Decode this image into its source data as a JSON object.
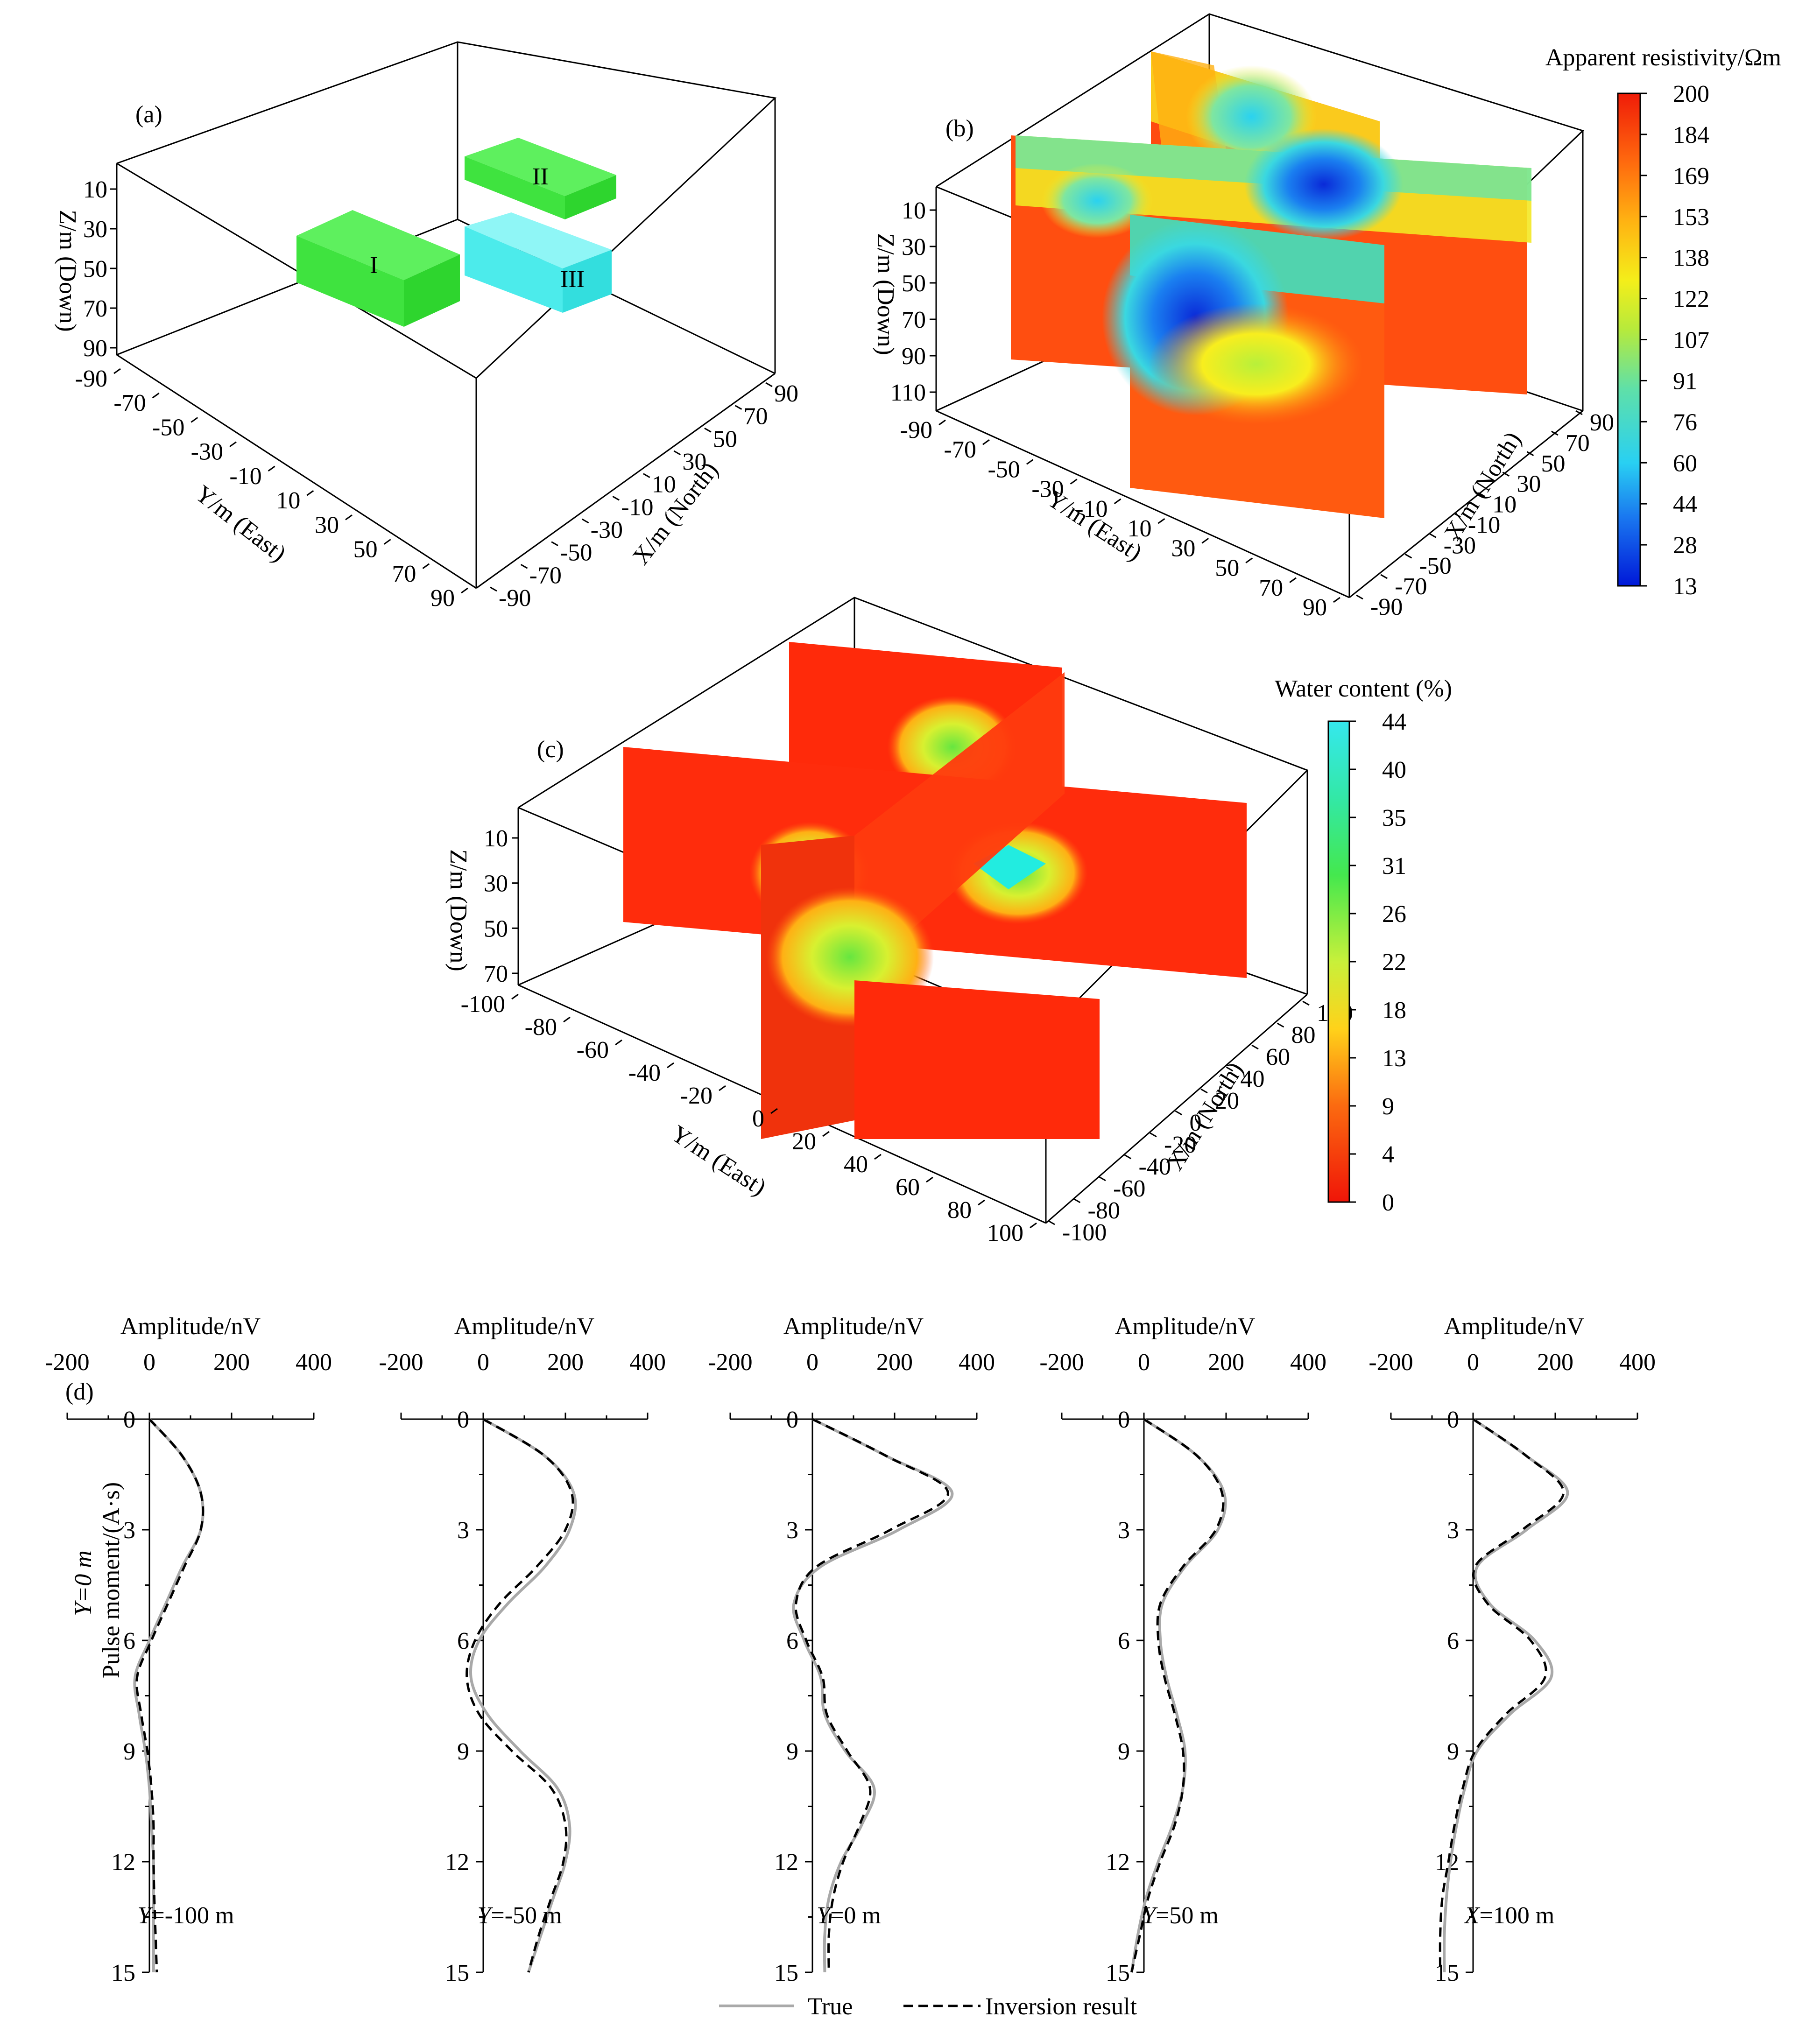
{
  "chart_data": [
    {
      "panel": "(a)",
      "type": "3d-model",
      "zlabel": "Z/m (Down)",
      "ylabel": "Y/m (East)",
      "xlabel": "X/m (North)",
      "z_ticks": [
        "10",
        "30",
        "50",
        "70",
        "90"
      ],
      "y_ticks": [
        "-90",
        "-70",
        "-50",
        "-30",
        "-10",
        "10",
        "30",
        "50",
        "70",
        "90"
      ],
      "x_ticks": [
        "-90",
        "-70",
        "-50",
        "-30",
        "-10",
        "10",
        "30",
        "50",
        "70",
        "90"
      ],
      "bodies": [
        {
          "label": "I",
          "color": "#33e633"
        },
        {
          "label": "II",
          "color": "#33e633"
        },
        {
          "label": "III",
          "color": "#33e6e6"
        }
      ]
    },
    {
      "panel": "(b)",
      "type": "3d-slices",
      "zlabel": "Z/m (Down)",
      "ylabel": "Y/m (East)",
      "xlabel": "X/m (North)",
      "z_ticks": [
        "10",
        "30",
        "50",
        "70",
        "90",
        "110"
      ],
      "y_ticks": [
        "-90",
        "-70",
        "-50",
        "-30",
        "-10",
        "10",
        "30",
        "50",
        "70",
        "90"
      ],
      "x_ticks": [
        "90",
        "70",
        "50",
        "30",
        "10",
        "-10",
        "-30",
        "-50",
        "-70",
        "-90"
      ],
      "colorbar": {
        "title": "Apparent resistivity/Ωm",
        "ticks": [
          "200",
          "184",
          "169",
          "153",
          "138",
          "122",
          "107",
          "91",
          "76",
          "60",
          "44",
          "28",
          "13"
        ],
        "range": [
          13,
          200
        ]
      }
    },
    {
      "panel": "(c)",
      "type": "3d-slices",
      "zlabel": "Z/m (Down)",
      "ylabel": "Y/m (East)",
      "xlabel": "X/m (North)",
      "z_ticks": [
        "10",
        "30",
        "50",
        "70"
      ],
      "y_ticks": [
        "-100",
        "-80",
        "-60",
        "-40",
        "-20",
        "0",
        "20",
        "40",
        "60",
        "80",
        "100"
      ],
      "x_ticks": [
        "100",
        "80",
        "60",
        "40",
        "20",
        "0",
        "-20",
        "-40",
        "-60",
        "-80",
        "-100"
      ],
      "colorbar": {
        "title": "Water content (%)",
        "ticks": [
          "44",
          "40",
          "35",
          "31",
          "26",
          "22",
          "18",
          "13",
          "9",
          "4",
          "0"
        ],
        "range": [
          0,
          44
        ]
      }
    },
    {
      "panel": "(d)",
      "type": "line",
      "xlabel": "Amplitude/nV",
      "ylabel": "Pulse moment/(A·s)",
      "ylabel_prefix": "Y=0 m",
      "xlim": [
        -200,
        400
      ],
      "ylim": [
        0,
        15
      ],
      "x_ticks": [
        "-200",
        "0",
        "200",
        "400"
      ],
      "y_ticks": [
        "0",
        "3",
        "6",
        "9",
        "12",
        "15"
      ],
      "legend": {
        "true": "True",
        "inv": "Inversion result",
        "position": "bottom-center"
      },
      "subplots": [
        {
          "caption_var": "Y",
          "caption_rest": "=-100 m",
          "y": [
            0,
            1,
            2,
            3,
            4,
            5,
            6,
            7,
            8,
            9,
            10,
            11,
            12,
            13,
            14,
            15
          ],
          "true": [
            0,
            80,
            125,
            125,
            80,
            40,
            0,
            -35,
            -25,
            -10,
            0,
            5,
            10,
            10,
            10,
            10
          ],
          "inv": [
            0,
            80,
            125,
            125,
            85,
            45,
            5,
            -30,
            -20,
            -5,
            5,
            10,
            10,
            12,
            15,
            18
          ]
        },
        {
          "caption_var": "Y",
          "caption_rest": "=-50 m",
          "y": [
            0,
            1,
            2,
            3,
            4,
            5,
            6,
            7,
            8,
            9,
            10,
            11,
            12,
            13,
            14,
            15
          ],
          "true": [
            0,
            150,
            220,
            210,
            150,
            60,
            -10,
            -30,
            10,
            90,
            180,
            210,
            200,
            170,
            140,
            110
          ],
          "inv": [
            0,
            150,
            215,
            200,
            130,
            40,
            -20,
            -40,
            -10,
            70,
            165,
            200,
            195,
            165,
            135,
            110
          ]
        },
        {
          "caption_var": "Y",
          "caption_rest": "=0 m",
          "y": [
            0,
            1,
            2,
            3,
            4,
            5,
            6,
            7,
            8,
            9,
            10,
            11,
            12,
            13,
            14,
            15
          ],
          "true": [
            0,
            180,
            340,
            210,
            20,
            -45,
            -20,
            20,
            30,
            80,
            150,
            120,
            70,
            40,
            30,
            30
          ],
          "inv": [
            0,
            180,
            330,
            190,
            10,
            -40,
            -15,
            25,
            35,
            85,
            140,
            115,
            75,
            50,
            40,
            40
          ]
        },
        {
          "caption_var": "Y",
          "caption_rest": "=50 m",
          "y": [
            0,
            1,
            2,
            3,
            4,
            5,
            6,
            7,
            8,
            9,
            10,
            11,
            12,
            13,
            14,
            15
          ],
          "true": [
            0,
            130,
            195,
            180,
            100,
            45,
            40,
            55,
            80,
            100,
            95,
            70,
            35,
            5,
            -15,
            -30
          ],
          "inv": [
            0,
            130,
            190,
            175,
            95,
            40,
            35,
            50,
            75,
            95,
            95,
            75,
            40,
            10,
            -10,
            -30
          ]
        },
        {
          "caption_var": "X",
          "caption_rest": "=100 m",
          "y": [
            0,
            1,
            2,
            3,
            4,
            5,
            6,
            7,
            8,
            9,
            10,
            11,
            12,
            13,
            14,
            15
          ],
          "true": [
            0,
            130,
            230,
            130,
            10,
            40,
            150,
            190,
            90,
            10,
            -20,
            -40,
            -55,
            -65,
            -70,
            -70
          ],
          "inv": [
            0,
            130,
            220,
            120,
            5,
            35,
            140,
            175,
            80,
            5,
            -25,
            -45,
            -60,
            -75,
            -80,
            -80
          ]
        }
      ]
    }
  ]
}
